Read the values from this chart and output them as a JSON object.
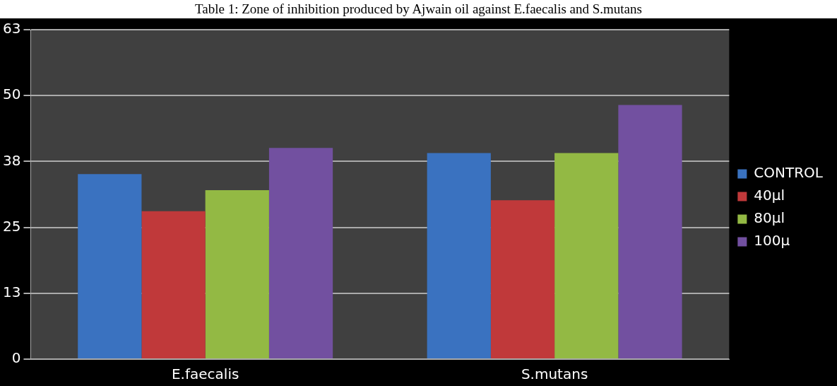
{
  "chart_data": {
    "type": "bar",
    "title": "Table 1: Zone of inhibition produced by Ajwain oil against E.faecalis and S.mutans",
    "categories": [
      "E.faecalis",
      "S.mutans"
    ],
    "series": [
      {
        "name": "CONTROL",
        "color": "#3a72c0",
        "values": [
          35.4,
          39.4
        ]
      },
      {
        "name": "40µl",
        "color": "#c0393a",
        "values": [
          28.3,
          30.4
        ]
      },
      {
        "name": "80µl",
        "color": "#93b944",
        "values": [
          32.3,
          39.4
        ]
      },
      {
        "name": "100µ",
        "color": "#7250a0",
        "values": [
          40.4,
          48.6
        ]
      }
    ],
    "ylim": [
      0,
      63
    ],
    "yticks": [
      0,
      {
        "value": 12.6,
        "label": "13"
      },
      {
        "value": 25.2,
        "label": "25"
      },
      {
        "value": 37.8,
        "label": "38"
      },
      {
        "value": 50.4,
        "label": "50"
      },
      63
    ],
    "grid": "y",
    "legend": "right"
  }
}
